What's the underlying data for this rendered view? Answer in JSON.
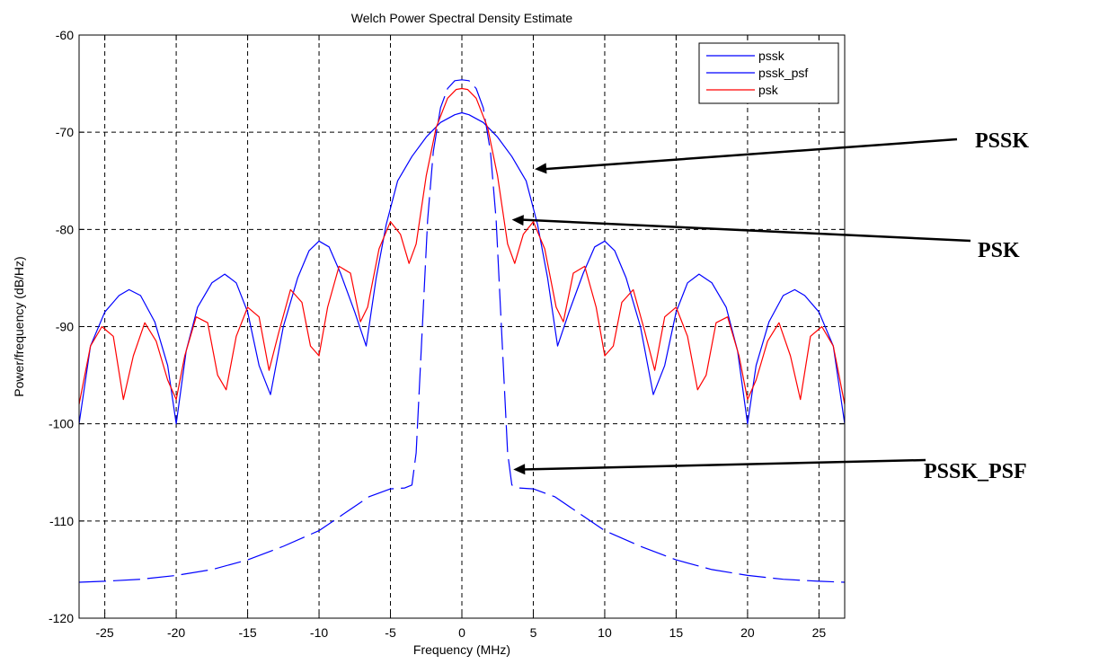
{
  "chart_data": {
    "type": "line",
    "title": "Welch Power Spectral Density Estimate",
    "xlabel": "Frequency (MHz)",
    "ylabel": "Power/frequency (dB/Hz)",
    "xlim": [
      -26.8,
      26.8
    ],
    "ylim": [
      -120,
      -60
    ],
    "xticks": [
      -25,
      -20,
      -15,
      -10,
      -5,
      0,
      5,
      10,
      15,
      20,
      25
    ],
    "yticks": [
      -120,
      -110,
      -100,
      -90,
      -80,
      -70,
      -60
    ],
    "grid": true,
    "legend_position": "top-right",
    "series": [
      {
        "name": "pssk",
        "color": "#0000ff",
        "style": "solid",
        "x": [
          -26.8,
          -26,
          -25,
          -24,
          -23.3,
          -22.5,
          -21.5,
          -20.6,
          -20,
          -19.3,
          -18.5,
          -17.5,
          -16.6,
          -15.8,
          -15,
          -14.2,
          -13.4,
          -12.5,
          -11.5,
          -10.7,
          -10,
          -9.3,
          -8.5,
          -7.5,
          -6.7,
          -6,
          -5.3,
          -4.5,
          -3.5,
          -2.5,
          -1.5,
          -0.5,
          0,
          0.5,
          1.5,
          2.5,
          3.5,
          4.5,
          5.3,
          6,
          6.7,
          7.5,
          8.5,
          9.3,
          10,
          10.7,
          11.5,
          12.5,
          13.4,
          14.2,
          15,
          15.8,
          16.6,
          17.5,
          18.5,
          19.3,
          20,
          20.6,
          21.5,
          22.5,
          23.3,
          24,
          25,
          26,
          26.8
        ],
        "y": [
          -100,
          -92,
          -88.5,
          -86.8,
          -86.2,
          -86.8,
          -89.5,
          -94,
          -100,
          -92.5,
          -88,
          -85.5,
          -84.6,
          -85.5,
          -88.5,
          -94,
          -97,
          -90,
          -85,
          -82.2,
          -81.2,
          -81.8,
          -84.5,
          -88.5,
          -92,
          -85,
          -79.5,
          -75,
          -72.5,
          -70.5,
          -69,
          -68.2,
          -68,
          -68.2,
          -69,
          -70.5,
          -72.5,
          -75,
          -79.5,
          -85,
          -92,
          -88.5,
          -84.5,
          -81.8,
          -81.2,
          -82.2,
          -85,
          -90,
          -97,
          -94,
          -88.5,
          -85.5,
          -84.6,
          -85.5,
          -88,
          -92.5,
          -100,
          -94,
          -89.5,
          -86.8,
          -86.2,
          -86.8,
          -88.5,
          -92,
          -100
        ]
      },
      {
        "name": "pssk_psf",
        "color": "#0000ff",
        "style": "dashed",
        "x": [
          -26.8,
          -25,
          -22.5,
          -20,
          -17.5,
          -15,
          -12.5,
          -10,
          -8,
          -6.5,
          -5,
          -4,
          -3.5,
          -3.2,
          -3,
          -2.7,
          -2.4,
          -2,
          -1.5,
          -1,
          -0.5,
          0,
          0.5,
          1,
          1.5,
          2,
          2.4,
          2.7,
          3,
          3.2,
          3.5,
          4,
          5,
          6.5,
          8,
          10,
          12.5,
          15,
          17.5,
          20,
          22.5,
          25,
          26.8
        ],
        "y": [
          -116.3,
          -116.2,
          -116,
          -115.6,
          -115,
          -114,
          -112.6,
          -111,
          -109,
          -107.5,
          -106.7,
          -106.6,
          -106.3,
          -103,
          -97,
          -88,
          -79,
          -72,
          -67.5,
          -65.5,
          -64.7,
          -64.6,
          -64.7,
          -65.5,
          -67.5,
          -72,
          -79,
          -88,
          -97,
          -103,
          -106.3,
          -106.6,
          -106.7,
          -107.5,
          -109,
          -111,
          -112.6,
          -114,
          -115,
          -115.6,
          -116,
          -116.2,
          -116.3
        ]
      },
      {
        "name": "psk",
        "color": "#ff0000",
        "style": "solid",
        "x": [
          -26.8,
          -26,
          -25.2,
          -24.4,
          -23.7,
          -23,
          -22.2,
          -21.4,
          -20.6,
          -20,
          -19.4,
          -18.6,
          -17.8,
          -17.1,
          -16.5,
          -15.8,
          -15,
          -14.2,
          -13.5,
          -12.8,
          -12,
          -11.2,
          -10.6,
          -10,
          -9.4,
          -8.6,
          -7.8,
          -7.1,
          -6.6,
          -5.8,
          -5,
          -4.3,
          -3.7,
          -3.2,
          -2.5,
          -1.8,
          -1,
          -0.4,
          0,
          0.4,
          1,
          1.8,
          2.5,
          3.2,
          3.7,
          4.3,
          5,
          5.8,
          6.6,
          7.1,
          7.8,
          8.6,
          9.4,
          10,
          10.6,
          11.2,
          12,
          12.8,
          13.5,
          14.2,
          15,
          15.8,
          16.5,
          17.1,
          17.8,
          18.6,
          19.4,
          20,
          20.6,
          21.4,
          22.2,
          23,
          23.7,
          24.4,
          25.2,
          26,
          26.8
        ],
        "y": [
          -98,
          -92,
          -90,
          -91,
          -97.5,
          -93,
          -89.6,
          -91.5,
          -95.5,
          -97.5,
          -93,
          -89,
          -89.6,
          -95,
          -96.5,
          -91,
          -88,
          -89,
          -94.5,
          -90.5,
          -86.2,
          -87.5,
          -92,
          -93,
          -88,
          -83.8,
          -84.5,
          -89.5,
          -88,
          -82,
          -79.2,
          -80.5,
          -83.5,
          -81.5,
          -74.5,
          -69.5,
          -66.5,
          -65.6,
          -65.5,
          -65.6,
          -66.5,
          -69.5,
          -74.5,
          -81.5,
          -83.5,
          -80.5,
          -79.2,
          -82,
          -88,
          -89.5,
          -84.5,
          -83.8,
          -88,
          -93,
          -92,
          -87.5,
          -86.2,
          -90.5,
          -94.5,
          -89,
          -88,
          -91,
          -96.5,
          -95,
          -89.6,
          -89,
          -93,
          -97.5,
          -95.5,
          -91.5,
          -89.6,
          -93,
          -97.5,
          -91,
          -90,
          -92,
          -98
        ]
      }
    ]
  },
  "annotations": [
    {
      "label": "PSSK",
      "target_x": 5.1,
      "target_y": -73.8
    },
    {
      "label": "PSK",
      "target_x": 3.5,
      "target_y": -79
    },
    {
      "label": "PSSK_PSF",
      "target_x": 3.6,
      "target_y": -104.7
    }
  ],
  "colors": {
    "axes": "#000000",
    "grid": "#000000",
    "background": "#ffffff"
  }
}
